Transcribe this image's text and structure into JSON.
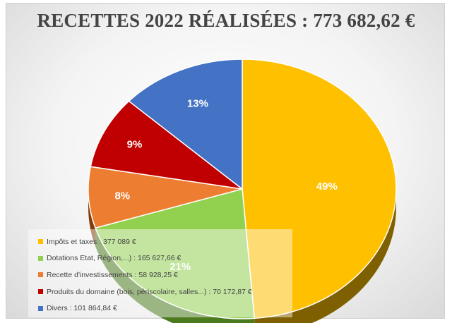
{
  "title": "RECETTES 2022 RÉALISÉES : 773 682,62 €",
  "chart_data": {
    "type": "pie",
    "title": "RECETTES 2022 RÉALISÉES : 773 682,62 €",
    "legend_position": "bottom-left",
    "slices": [
      {
        "name": "Impôts et taxes : 377 089 €",
        "value": 377089,
        "percent_label": "49%",
        "color": "#FFC000",
        "side_color": "#7F6000"
      },
      {
        "name": "Dotations Etat, Région,...) : 165 627,66 €",
        "value": 165627.66,
        "percent_label": "21%",
        "color": "#92D050",
        "side_color": "#4C7A1E"
      },
      {
        "name": "Recette d'investissements : 58 928,25 €",
        "value": 58928.25,
        "percent_label": "8%",
        "color": "#ED7D31",
        "side_color": "#843C0C"
      },
      {
        "name": "Produits du domaine (bois, périscolaire, salles...) : 70 172,87 €",
        "value": 70172.87,
        "percent_label": "9%",
        "color": "#C00000",
        "side_color": "#600000"
      },
      {
        "name": "Divers : 101 864,84 €",
        "value": 101864.84,
        "percent_label": "13%",
        "color": "#4472C4",
        "side_color": "#1F3864"
      }
    ]
  }
}
